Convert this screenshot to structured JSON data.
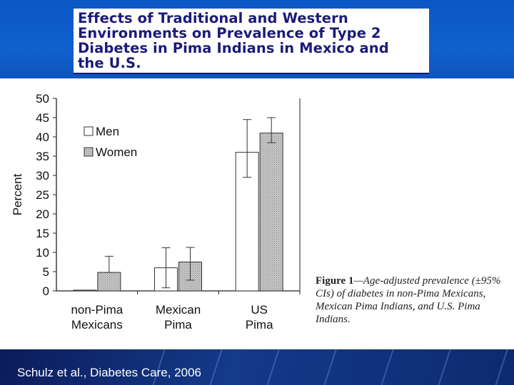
{
  "slide": {
    "title": "Effects of Traditional and Western\nEnvironments on Prevalence of Type 2\nDiabetes in Pima Indians in Mexico and\nthe U.S.",
    "citation": "Schulz et al., Diabetes Care, 2006",
    "caption_label": "Figure 1",
    "caption_text": "—Age-adjusted prevalence (±95% CIs) of diabetes in non-Pima Mexicans, Mexican Pima Indians, and U.S. Pima Indians."
  },
  "colors": {
    "top_band": "#0a57c4",
    "title_text": "#1b1b7a",
    "bottom_band": "#143a8a",
    "men_bar": "#ffffff",
    "women_bar": "#c8c8c8",
    "axis": "#222222"
  },
  "chart_data": {
    "type": "bar",
    "categories": [
      [
        "non-Pima",
        "Mexicans"
      ],
      [
        "Mexican",
        "Pima"
      ],
      [
        "US",
        "Pima"
      ]
    ],
    "ylabel": "Percent",
    "xlabel": "",
    "ylim": [
      0,
      50
    ],
    "yticks": [
      0,
      5,
      10,
      15,
      20,
      25,
      30,
      35,
      40,
      45,
      50
    ],
    "legend_position": "top-left",
    "grid": false,
    "series": [
      {
        "name": "Men",
        "values": [
          0.2,
          6.0,
          36.0
        ],
        "ci_low": [
          0.2,
          0.8,
          29.5
        ],
        "ci_high": [
          0.2,
          11.2,
          44.5
        ]
      },
      {
        "name": "Women",
        "values": [
          4.8,
          7.5,
          41.0
        ],
        "ci_low": [
          4.8,
          2.8,
          38.5
        ],
        "ci_high": [
          9.0,
          11.3,
          45.0
        ]
      }
    ]
  }
}
